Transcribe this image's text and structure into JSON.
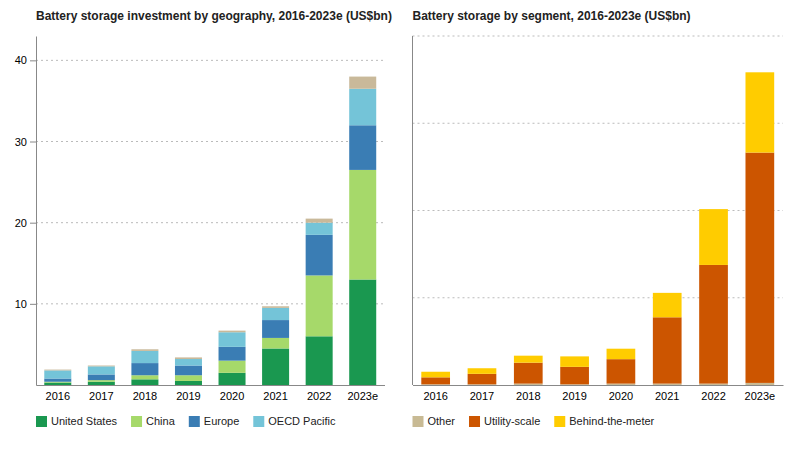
{
  "chart_data": [
    {
      "type": "bar",
      "title": "Battery storage investment by geography, 2016-2023e (US$bn)",
      "categories": [
        "2016",
        "2017",
        "2018",
        "2019",
        "2020",
        "2021",
        "2022",
        "2023e"
      ],
      "series": [
        {
          "name": "United States",
          "color": "#1a9850",
          "values": [
            0.3,
            0.4,
            0.7,
            0.5,
            1.5,
            4.5,
            6.0,
            13.0
          ]
        },
        {
          "name": "China",
          "color": "#a6d96a",
          "values": [
            0.1,
            0.2,
            0.5,
            0.7,
            1.5,
            1.3,
            7.5,
            13.5
          ]
        },
        {
          "name": "Europe",
          "color": "#3a7db4",
          "values": [
            0.4,
            0.7,
            1.5,
            1.2,
            1.7,
            2.2,
            5.0,
            5.5
          ]
        },
        {
          "name": "OECD Pacific",
          "color": "#74c4d8",
          "values": [
            1.0,
            1.0,
            1.5,
            0.8,
            1.8,
            1.5,
            1.5,
            4.5
          ]
        },
        {
          "color": "#c9b99a",
          "values": [
            0.1,
            0.1,
            0.2,
            0.2,
            0.2,
            0.2,
            0.5,
            1.5
          ]
        }
      ],
      "stacked": true,
      "ylim": [
        0,
        43
      ],
      "yticks": [
        10,
        20,
        30,
        40
      ],
      "grid": true,
      "legend": "bottom"
    },
    {
      "type": "bar",
      "title": "Battery storage by segment, 2016-2023e (US$bn)",
      "categories": [
        "2016",
        "2017",
        "2018",
        "2019",
        "2020",
        "2021",
        "2022",
        "2023e"
      ],
      "series": [
        {
          "name": "Other",
          "color": "#c8ba94",
          "values": [
            0.1,
            0.1,
            0.2,
            0.1,
            0.2,
            0.2,
            0.2,
            0.3
          ]
        },
        {
          "name": "Utility-scale",
          "color": "#cc5500",
          "values": [
            1.0,
            1.5,
            3.0,
            2.5,
            3.5,
            9.5,
            17.0,
            33.0
          ]
        },
        {
          "name": "Behind-the-meter",
          "color": "#ffcc00",
          "values": [
            0.8,
            0.8,
            1.0,
            1.5,
            1.5,
            3.5,
            8.0,
            11.5
          ]
        }
      ],
      "stacked": true,
      "ylim": [
        0,
        50
      ],
      "yticks": [
        12.5,
        25,
        37.5,
        50
      ],
      "grid": true,
      "tick_labels": "x",
      "legend": "bottom"
    }
  ]
}
